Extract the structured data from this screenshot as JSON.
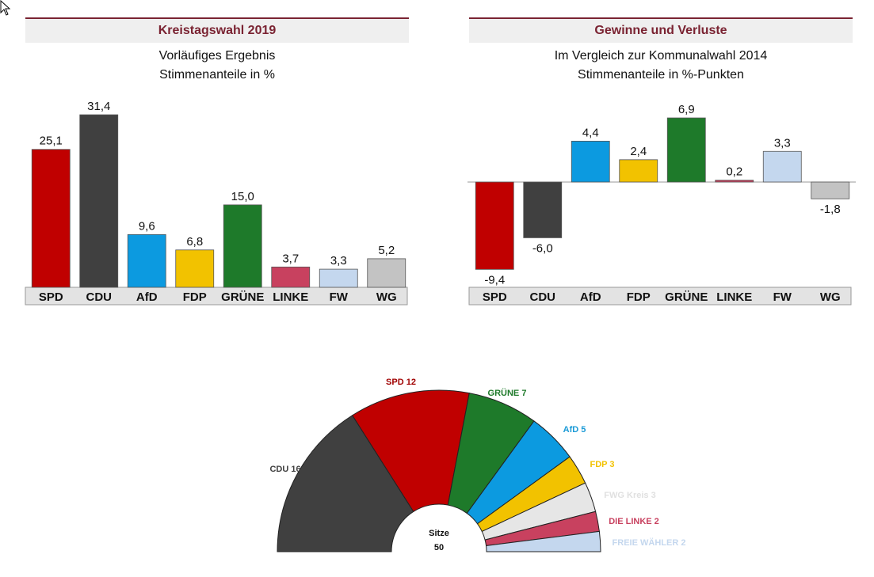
{
  "chart_data": [
    {
      "type": "bar",
      "title": "Kreistagswahl 2019",
      "subtitle_lines": [
        "Vorläufiges Ergebnis",
        "Stimmenanteile in %"
      ],
      "categories": [
        "SPD",
        "CDU",
        "AfD",
        "FDP",
        "GRÜNE",
        "LINKE",
        "FW",
        "WG"
      ],
      "values": [
        25.1,
        31.4,
        9.6,
        6.8,
        15.0,
        3.7,
        3.3,
        5.2
      ],
      "value_labels": [
        "25,1",
        "31,4",
        "9,6",
        "6,8",
        "15,0",
        "3,7",
        "3,3",
        "5,2"
      ],
      "colors": [
        "#c00000",
        "#404040",
        "#0c9ae0",
        "#f2c200",
        "#1e7a2a",
        "#c8415f",
        "#c4d7ee",
        "#c3c3c3"
      ],
      "xlabel": "",
      "ylabel": "",
      "ylim": [
        0,
        31.4
      ],
      "grid": false
    },
    {
      "type": "bar",
      "title": "Gewinne und Verluste",
      "subtitle_lines": [
        "Im Vergleich zur Kommunalwahl 2014",
        "Stimmenanteile in %-Punkten"
      ],
      "categories": [
        "SPD",
        "CDU",
        "AfD",
        "FDP",
        "GRÜNE",
        "LINKE",
        "FW",
        "WG"
      ],
      "values": [
        -9.4,
        -6.0,
        4.4,
        2.4,
        6.9,
        0.2,
        3.3,
        -1.8
      ],
      "value_labels": [
        "-9,4",
        "-6,0",
        "4,4",
        "2,4",
        "6,9",
        "0,2",
        "3,3",
        "-1,8"
      ],
      "colors": [
        "#c00000",
        "#404040",
        "#0c9ae0",
        "#f2c200",
        "#1e7a2a",
        "#c8415f",
        "#c4d7ee",
        "#c3c3c3"
      ],
      "xlabel": "",
      "ylabel": "",
      "ylim": [
        -9.4,
        6.9
      ],
      "grid": false
    },
    {
      "type": "pie",
      "variant": "semicircle-parliament",
      "center_label": "Sitze",
      "center_value": "50",
      "categories": [
        "CDU",
        "SPD",
        "GRÜNE",
        "AfD",
        "FDP",
        "FWG Kreis",
        "DIE LINKE",
        "FREIE WÄHLER"
      ],
      "values": [
        16,
        12,
        7,
        5,
        3,
        3,
        2,
        2
      ],
      "labels": [
        "CDU 16",
        "SPD 12",
        "GRÜNE 7",
        "AfD 5",
        "FDP 3",
        "FWG Kreis 3",
        "DIE LINKE 2",
        "FREIE WÄHLER 2"
      ],
      "colors": [
        "#404040",
        "#c00000",
        "#1e7a2a",
        "#0c9ae0",
        "#f2c200",
        "#e6e6e6",
        "#c8415f",
        "#c4d7ee"
      ],
      "label_colors": [
        "#404040",
        "#a00000",
        "#1e7a2a",
        "#1a9ad6",
        "#f2c200",
        "#e0e0e0",
        "#c8415f",
        "#c4d7ee"
      ]
    }
  ]
}
